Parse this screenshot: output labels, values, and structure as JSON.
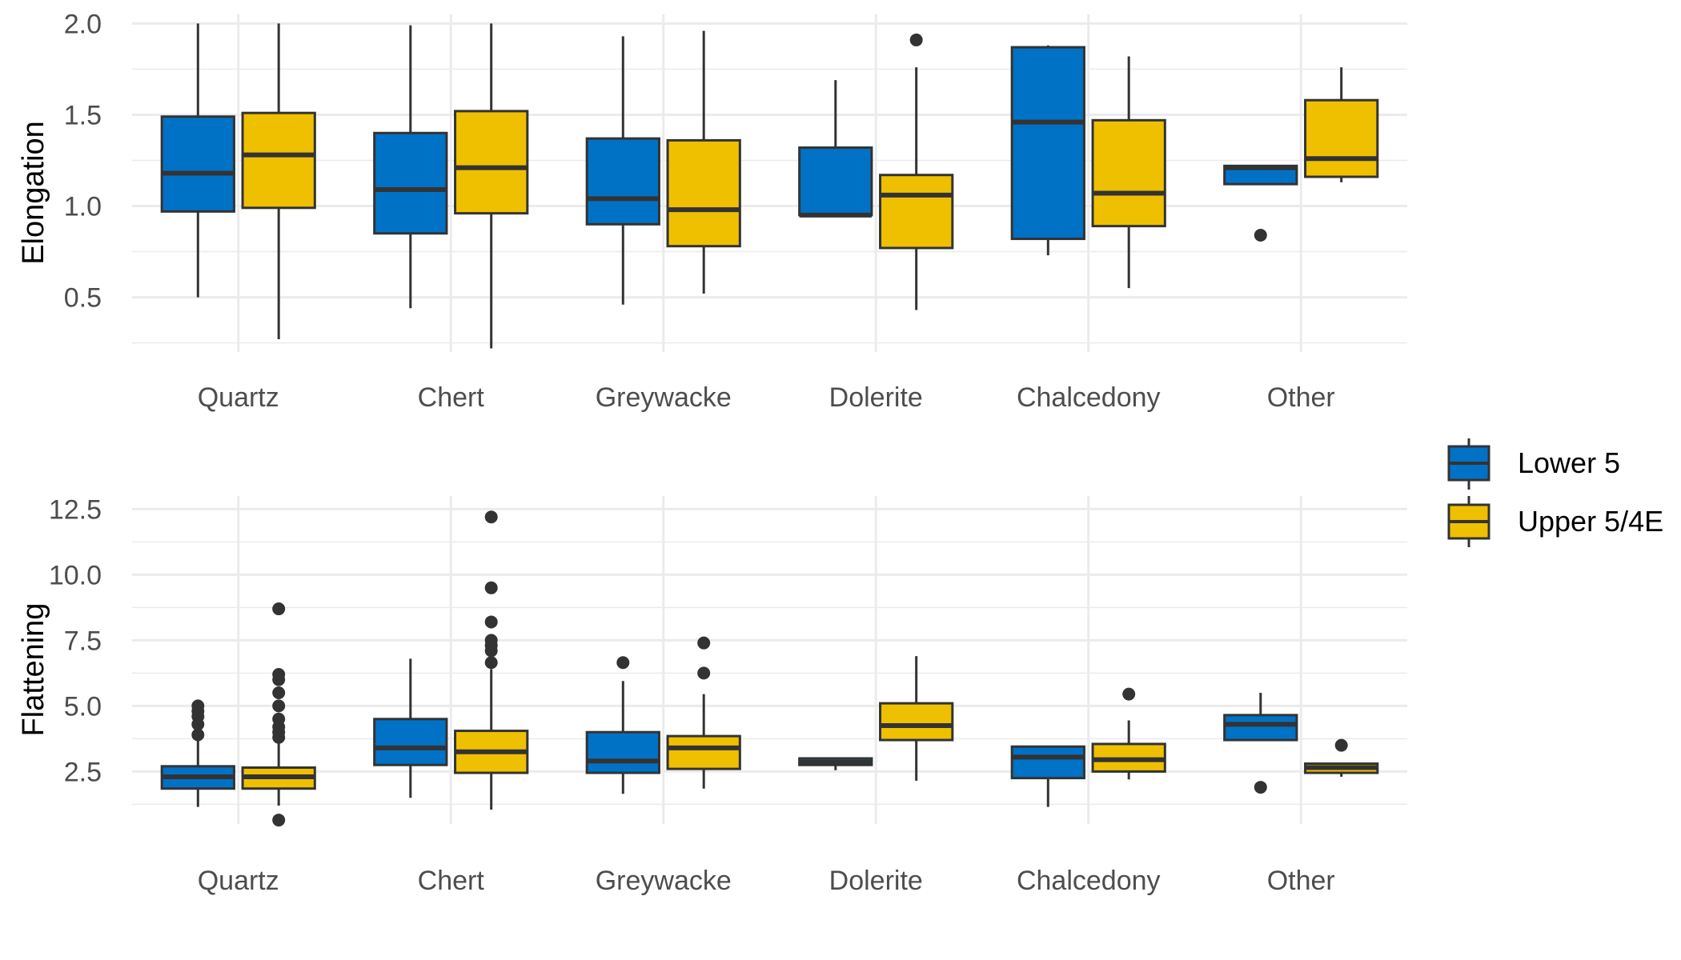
{
  "chart_data": [
    {
      "type": "boxplot",
      "ylabel": "Elongation",
      "ylim": [
        0.2,
        2.05
      ],
      "yticks": [
        "0.5",
        "1.0",
        "1.5",
        "2.0"
      ],
      "categories": [
        "Quartz",
        "Chert",
        "Greywacke",
        "Dolerite",
        "Chalcedony",
        "Other"
      ],
      "series": [
        {
          "name": "Lower 5",
          "color": "#0072C6",
          "boxes": [
            {
              "min": 0.5,
              "q1": 0.97,
              "median": 1.18,
              "q3": 1.49,
              "max": 2.0,
              "outliers": []
            },
            {
              "min": 0.44,
              "q1": 0.85,
              "median": 1.09,
              "q3": 1.4,
              "max": 1.99,
              "outliers": []
            },
            {
              "min": 0.46,
              "q1": 0.9,
              "median": 1.04,
              "q3": 1.37,
              "max": 1.93,
              "outliers": []
            },
            {
              "min": 0.95,
              "q1": 0.95,
              "median": 0.95,
              "q3": 1.32,
              "max": 1.69,
              "outliers": []
            },
            {
              "min": 0.73,
              "q1": 0.82,
              "median": 1.46,
              "q3": 1.87,
              "max": 1.88,
              "outliers": []
            },
            {
              "min": 1.12,
              "q1": 1.12,
              "median": 1.21,
              "q3": 1.22,
              "max": 1.22,
              "outliers": [
                0.84
              ]
            }
          ]
        },
        {
          "name": "Upper 5/4E",
          "color": "#EFC000",
          "boxes": [
            {
              "min": 0.27,
              "q1": 0.99,
              "median": 1.28,
              "q3": 1.51,
              "max": 2.0,
              "outliers": []
            },
            {
              "min": 0.22,
              "q1": 0.96,
              "median": 1.21,
              "q3": 1.52,
              "max": 2.0,
              "outliers": []
            },
            {
              "min": 0.52,
              "q1": 0.78,
              "median": 0.98,
              "q3": 1.36,
              "max": 1.96,
              "outliers": []
            },
            {
              "min": 0.43,
              "q1": 0.77,
              "median": 1.06,
              "q3": 1.17,
              "max": 1.76,
              "outliers": [
                1.91
              ]
            },
            {
              "min": 0.55,
              "q1": 0.89,
              "median": 1.07,
              "q3": 1.47,
              "max": 1.82,
              "outliers": []
            },
            {
              "min": 1.13,
              "q1": 1.16,
              "median": 1.26,
              "q3": 1.58,
              "max": 1.76,
              "outliers": []
            }
          ]
        }
      ]
    },
    {
      "type": "boxplot",
      "ylabel": "Flattening",
      "ylim": [
        0.5,
        13.0
      ],
      "yticks": [
        "2.5",
        "5.0",
        "7.5",
        "10.0",
        "12.5"
      ],
      "categories": [
        "Quartz",
        "Chert",
        "Greywacke",
        "Dolerite",
        "Chalcedony",
        "Other"
      ],
      "series": [
        {
          "name": "Lower 5",
          "color": "#0072C6",
          "boxes": [
            {
              "min": 1.15,
              "q1": 1.85,
              "median": 2.3,
              "q3": 2.7,
              "max": 3.7,
              "outliers": [
                3.9,
                4.3,
                4.6,
                4.8,
                5.0
              ]
            },
            {
              "min": 1.5,
              "q1": 2.75,
              "median": 3.4,
              "q3": 4.5,
              "max": 6.8,
              "outliers": []
            },
            {
              "min": 1.65,
              "q1": 2.45,
              "median": 2.9,
              "q3": 4.0,
              "max": 5.95,
              "outliers": [
                6.65
              ]
            },
            {
              "min": 2.55,
              "q1": 2.75,
              "median": 2.85,
              "q3": 3.0,
              "max": 3.0,
              "outliers": []
            },
            {
              "min": 1.15,
              "q1": 2.25,
              "median": 3.05,
              "q3": 3.45,
              "max": 3.45,
              "outliers": []
            },
            {
              "min": 3.7,
              "q1": 3.7,
              "median": 4.3,
              "q3": 4.65,
              "max": 5.5,
              "outliers": [
                1.9
              ]
            }
          ]
        },
        {
          "name": "Upper 5/4E",
          "color": "#EFC000",
          "boxes": [
            {
              "min": 1.2,
              "q1": 1.85,
              "median": 2.3,
              "q3": 2.65,
              "max": 3.6,
              "outliers": [
                0.65,
                3.8,
                4.0,
                4.2,
                4.5,
                5.0,
                5.5,
                6.0,
                6.2,
                8.7
              ]
            },
            {
              "min": 1.05,
              "q1": 2.45,
              "median": 3.25,
              "q3": 4.05,
              "max": 6.4,
              "outliers": [
                6.65,
                7.1,
                7.3,
                7.5,
                8.2,
                9.5,
                12.2
              ]
            },
            {
              "min": 1.85,
              "q1": 2.6,
              "median": 3.4,
              "q3": 3.85,
              "max": 5.45,
              "outliers": [
                6.25,
                7.4
              ]
            },
            {
              "min": 2.15,
              "q1": 3.7,
              "median": 4.25,
              "q3": 5.1,
              "max": 6.9,
              "outliers": []
            },
            {
              "min": 2.2,
              "q1": 2.5,
              "median": 2.95,
              "q3": 3.55,
              "max": 4.45,
              "outliers": [
                5.45
              ]
            },
            {
              "min": 2.3,
              "q1": 2.45,
              "median": 2.65,
              "q3": 2.8,
              "max": 2.8,
              "outliers": [
                3.5
              ]
            }
          ]
        }
      ]
    }
  ],
  "legend": {
    "position": "right",
    "items": [
      {
        "label": "Lower 5",
        "color": "#0072C6"
      },
      {
        "label": "Upper 5/4E",
        "color": "#EFC000"
      }
    ]
  }
}
